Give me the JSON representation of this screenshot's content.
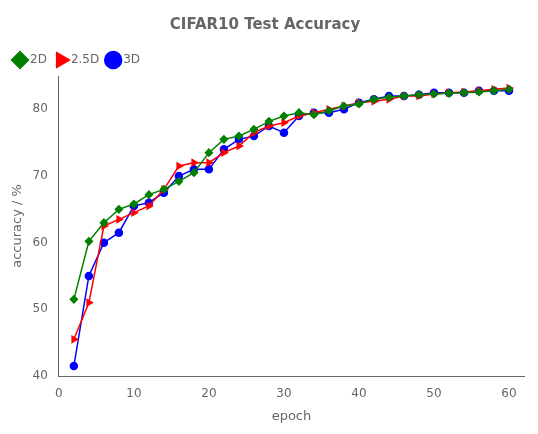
{
  "chart_data": {
    "type": "line",
    "title": "CIFAR10 Test Accuracy",
    "xlabel": "epoch",
    "ylabel": "accuracy / %",
    "x": [
      2,
      4,
      6,
      8,
      10,
      12,
      14,
      16,
      18,
      20,
      22,
      24,
      26,
      28,
      30,
      32,
      34,
      36,
      38,
      40,
      42,
      44,
      46,
      48,
      50,
      52,
      54,
      56,
      58,
      60
    ],
    "series": [
      {
        "name": "2D",
        "color": "#008000",
        "marker": "diamond",
        "values": [
          51.5,
          60.2,
          63.0,
          65.0,
          65.8,
          67.2,
          68.0,
          69.2,
          70.5,
          73.5,
          75.5,
          76.0,
          77.0,
          78.2,
          79.0,
          79.5,
          79.2,
          79.8,
          80.5,
          80.8,
          81.5,
          81.8,
          82.0,
          82.2,
          82.3,
          82.4,
          82.5,
          82.6,
          82.8,
          83.0
        ]
      },
      {
        "name": "2.5D",
        "color": "#ff0000",
        "marker": "triangle-right",
        "values": [
          45.5,
          51.0,
          62.5,
          63.5,
          64.5,
          65.5,
          68.0,
          71.5,
          72.0,
          72.0,
          73.5,
          74.5,
          76.5,
          77.5,
          78.0,
          79.0,
          79.5,
          80.0,
          80.5,
          81.0,
          81.2,
          81.5,
          82.0,
          82.0,
          82.3,
          82.5,
          82.6,
          82.8,
          83.0,
          83.2
        ]
      },
      {
        "name": "3D",
        "color": "#0000ff",
        "marker": "circle",
        "values": [
          41.5,
          55.0,
          60.0,
          61.5,
          65.5,
          66.0,
          67.5,
          70.0,
          71.0,
          71.0,
          74.0,
          75.5,
          76.0,
          77.5,
          76.5,
          79.0,
          79.5,
          79.5,
          80.0,
          81.0,
          81.5,
          82.0,
          82.0,
          82.2,
          82.5,
          82.5,
          82.5,
          82.8,
          82.8,
          82.8
        ]
      }
    ],
    "xlim": [
      0,
      62
    ],
    "xticks": [
      0,
      10,
      20,
      30,
      40,
      50,
      60
    ],
    "ylim": [
      40,
      85
    ],
    "yticks": [
      40,
      50,
      60,
      70,
      80
    ],
    "grid": false,
    "legend": "upper left"
  }
}
